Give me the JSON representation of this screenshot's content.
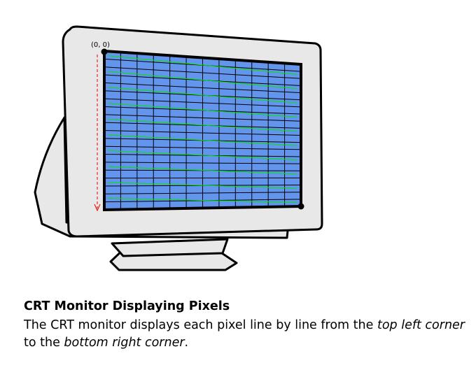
{
  "figure": {
    "origin_label": "(0, 0)",
    "colors": {
      "monitor_body": "#e8e8e8",
      "outline": "#000000",
      "screen": "#6495ed",
      "scan_line": "#00e600",
      "vertical_sweep": "#e60000"
    },
    "icons": [
      "crt-monitor-icon"
    ]
  },
  "caption": {
    "title": "CRT Monitor Displaying Pixels",
    "text_1": "The CRT monitor displays each pixel line by line from the ",
    "emph_1": "top left corner",
    "text_2": " to the ",
    "emph_2": "bottom right corner",
    "text_3": "."
  }
}
